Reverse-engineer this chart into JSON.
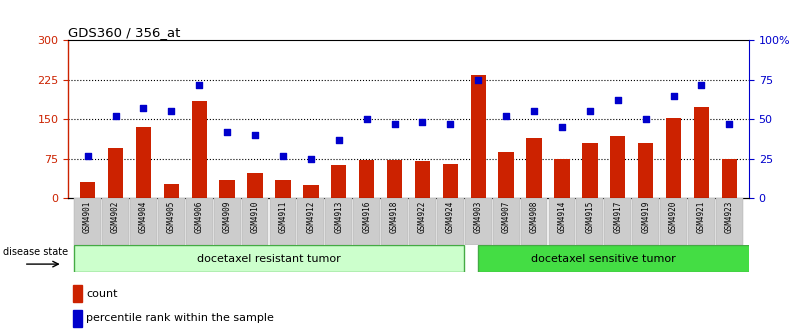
{
  "title": "GDS360 / 356_at",
  "categories": [
    "GSM4901",
    "GSM4902",
    "GSM4904",
    "GSM4905",
    "GSM4906",
    "GSM4909",
    "GSM4910",
    "GSM4911",
    "GSM4912",
    "GSM4913",
    "GSM4916",
    "GSM4918",
    "GSM4922",
    "GSM4924",
    "GSM4903",
    "GSM4907",
    "GSM4908",
    "GSM4914",
    "GSM4915",
    "GSM4917",
    "GSM4919",
    "GSM4920",
    "GSM4921",
    "GSM4923"
  ],
  "counts": [
    30,
    95,
    135,
    28,
    185,
    35,
    48,
    35,
    25,
    63,
    73,
    73,
    70,
    65,
    235,
    88,
    115,
    75,
    105,
    118,
    105,
    152,
    173,
    75
  ],
  "percentile_ranks": [
    27,
    52,
    57,
    55,
    72,
    42,
    40,
    27,
    25,
    37,
    50,
    47,
    48,
    47,
    75,
    52,
    55,
    45,
    55,
    62,
    50,
    65,
    72,
    47
  ],
  "bar_color": "#cc2200",
  "dot_color": "#0000cc",
  "left_ylim": [
    0,
    300
  ],
  "right_ylim": [
    0,
    100
  ],
  "left_yticks": [
    0,
    75,
    150,
    225,
    300
  ],
  "right_ytick_values": [
    0,
    25,
    50,
    75,
    100
  ],
  "right_yticklabels": [
    "0",
    "25",
    "50",
    "75",
    "100%"
  ],
  "group1_label": "docetaxel resistant tumor",
  "group2_label": "docetaxel sensitive tumor",
  "group1_count": 14,
  "group2_count": 10,
  "disease_state_label": "disease state",
  "legend_count_label": "count",
  "legend_percentile_label": "percentile rank within the sample",
  "bar_color_legend": "#cc2200",
  "dot_color_legend": "#0000cc",
  "group1_bg": "#ccffcc",
  "group2_bg": "#44dd44",
  "group_border": "#44aa44",
  "tick_bg": "#cccccc",
  "fig_bg": "#ffffff"
}
